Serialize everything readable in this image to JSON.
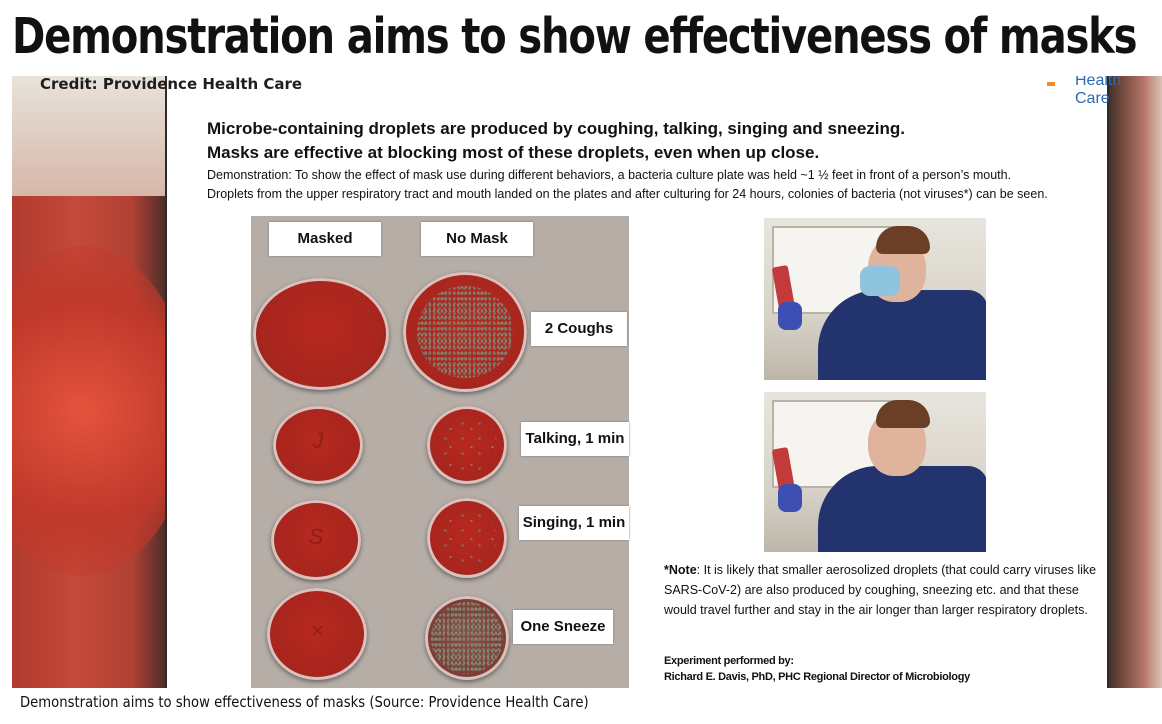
{
  "headline": "Demonstration aims to show effectiveness of masks",
  "photo": {
    "credit": "Credit: Providence Health Care",
    "slide": {
      "logo_text": "Health Care",
      "subtitle_1": "Microbe-containing droplets are produced by coughing, talking, singing and sneezing.",
      "subtitle_2": "Masks are effective at blocking most of these droplets, even when up close.",
      "demo_line_1": "Demonstration: To show the effect of mask use during different behaviors, a bacteria culture plate was held ~1 ½ feet in front of a person’s mouth.",
      "demo_line_2": "Droplets from the upper respiratory tract and mouth landed on the plates and after culturing for 24 hours, colonies of bacteria (not viruses*) can be seen.",
      "col_masked": "Masked",
      "col_nomask": "No Mask",
      "rows": [
        "2 Coughs",
        "Talking, 1 min",
        "Singing, 1 min",
        "One Sneeze"
      ],
      "note_label": "*Note",
      "note_text": ": It is likely that smaller aerosolized droplets (that could carry viruses like SARS-CoV-2) are also produced by coughing, sneezing etc. and that these would travel further and stay in the air longer than larger respiratory droplets.",
      "experiment_line_1": "Experiment performed by:",
      "experiment_line_2": "Richard E. Davis, PhD, PHC Regional Director of Microbiology"
    }
  },
  "caption": "Demonstration aims to show effectiveness of masks (Source: Providence Health Care)"
}
